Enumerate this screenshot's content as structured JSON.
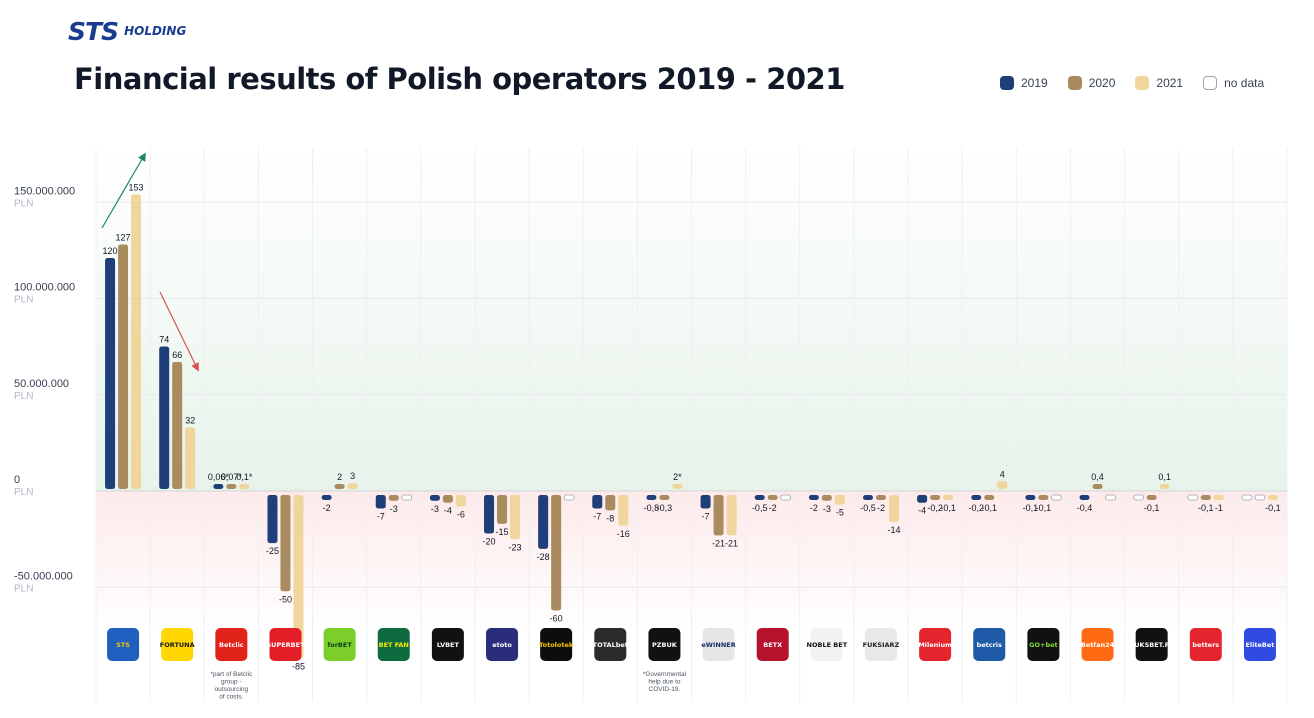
{
  "brand": {
    "mark": "STS",
    "sub": "HOLDING"
  },
  "colors": {
    "y2019": "#1f3f7a",
    "y2020": "#a98b5f",
    "y2021": "#f0d59c",
    "nodata": "#ffffff",
    "up_arrow": "#1e8a5a",
    "down_arrow": "#d9534f"
  },
  "chart_data": {
    "type": "bar",
    "title": "Financial results of Polish operators 2019 - 2021",
    "ylim": [
      -82000000,
      163000000
    ],
    "yticks": [
      {
        "value": 150000000,
        "label": "150.000.000",
        "unit": "PLN"
      },
      {
        "value": 100000000,
        "label": "100.000.000",
        "unit": "PLN"
      },
      {
        "value": 50000000,
        "label": "50.000.000",
        "unit": "PLN"
      },
      {
        "value": 0,
        "label": "0",
        "unit": "PLN"
      },
      {
        "value": -50000000,
        "label": "-50.000.000",
        "unit": "PLN"
      }
    ],
    "series": [
      {
        "name": "2019"
      },
      {
        "name": "2020"
      },
      {
        "name": "2021"
      }
    ],
    "nodata_label": "no data",
    "categories": [
      {
        "name": "STS",
        "logo": {
          "text": "STS",
          "bg": "#1f5fbf",
          "fg": "#f7c600"
        },
        "values": [
          120,
          127,
          153
        ],
        "labels": [
          "120",
          "127",
          "153"
        ]
      },
      {
        "name": "FORTUNA",
        "logo": {
          "text": "FORTUNA",
          "bg": "#ffd600",
          "fg": "#1a1a1a"
        },
        "values": [
          74,
          66,
          32
        ],
        "labels": [
          "74",
          "66",
          "32"
        ]
      },
      {
        "name": "Betclic",
        "logo": {
          "text": "Betclic",
          "bg": "#e2231a",
          "fg": "#ffffff"
        },
        "values": [
          0.06,
          0.07,
          0.1
        ],
        "labels": [
          "0,06*",
          "0,07*",
          "0,1*"
        ],
        "footnote": [
          "*part of Betclic",
          "group -",
          "outsourcing",
          "of costs."
        ]
      },
      {
        "name": "SUPERBET",
        "logo": {
          "text": "SUPERBET",
          "bg": "#e41e26",
          "fg": "#ffffff"
        },
        "values": [
          -25,
          -50,
          -85
        ],
        "labels": [
          "-25",
          "-50",
          "-85"
        ]
      },
      {
        "name": "forBET",
        "logo": {
          "text": "forBET",
          "bg": "#7ccf2a",
          "fg": "#0b3d1a"
        },
        "values": [
          -2,
          2,
          3
        ],
        "labels": [
          "-2",
          "2",
          "3"
        ]
      },
      {
        "name": "BETFAN",
        "logo": {
          "text": "BET FAN",
          "bg": "#0e6b3f",
          "fg": "#ffe600"
        },
        "values": [
          -7,
          -3,
          null
        ],
        "labels": [
          "-7",
          "-3",
          ""
        ]
      },
      {
        "name": "LVBET",
        "logo": {
          "text": "LVBET",
          "bg": "#111111",
          "fg": "#ffffff"
        },
        "values": [
          -3,
          -4,
          -6
        ],
        "labels": [
          "-3",
          "-4",
          "-6"
        ]
      },
      {
        "name": "eToto",
        "logo": {
          "text": "etoto",
          "bg": "#2a2e7a",
          "fg": "#ffffff"
        },
        "values": [
          -20,
          -15,
          -23
        ],
        "labels": [
          "-20",
          "-15",
          "-23"
        ]
      },
      {
        "name": "Totolotek",
        "logo": {
          "text": "Totolotek",
          "bg": "#0d0d0d",
          "fg": "#f5c400"
        },
        "values": [
          -28,
          -60,
          null
        ],
        "labels": [
          "-28",
          "-60",
          ""
        ]
      },
      {
        "name": "TOTALbet",
        "logo": {
          "text": "TOTALbet",
          "bg": "#2b2b2b",
          "fg": "#ffffff"
        },
        "values": [
          -7,
          -8,
          -16
        ],
        "labels": [
          "-7",
          "-8",
          "-16"
        ]
      },
      {
        "name": "PZBUK",
        "logo": {
          "text": "PZBUK",
          "bg": "#111111",
          "fg": "#ffffff"
        },
        "values": [
          -0.8,
          -0.3,
          2
        ],
        "labels": [
          "-0,8",
          "-0,3",
          "2*"
        ],
        "footnote": [
          "*Governmental",
          "help due to",
          "COVID-19."
        ]
      },
      {
        "name": "eWinner",
        "logo": {
          "text": "eWINNER",
          "bg": "#e6e6e6",
          "fg": "#1a2c6b"
        },
        "values": [
          -7,
          -21,
          -21
        ],
        "labels": [
          "-7",
          "-21",
          "-21"
        ]
      },
      {
        "name": "BETX",
        "logo": {
          "text": "BETX",
          "bg": "#b5122e",
          "fg": "#ffffff"
        },
        "values": [
          -0.5,
          -2,
          null
        ],
        "labels": [
          "-0,5",
          "-2",
          ""
        ]
      },
      {
        "name": "NOBLE BET",
        "logo": {
          "text": "NOBLE BET",
          "bg": "#f2f2f2",
          "fg": "#111111"
        },
        "values": [
          -2,
          -3,
          -5
        ],
        "labels": [
          "-2",
          "-3",
          "-5"
        ]
      },
      {
        "name": "Fuksiarz",
        "logo": {
          "text": "FUKSIARZ",
          "bg": "#e8e8e8",
          "fg": "#222222"
        },
        "values": [
          -0.5,
          -2,
          -14
        ],
        "labels": [
          "-0,5",
          "-2",
          "-14"
        ]
      },
      {
        "name": "Milenium",
        "logo": {
          "text": "Milenium",
          "bg": "#e3262e",
          "fg": "#ffffff"
        },
        "values": [
          -4,
          -0.2,
          -0.1
        ],
        "labels": [
          "-4",
          "-0,2",
          "-0,1"
        ]
      },
      {
        "name": "betcris",
        "logo": {
          "text": "betcris",
          "bg": "#1e5aa8",
          "fg": "#ffffff"
        },
        "values": [
          -0.2,
          -0.1,
          4
        ],
        "labels": [
          "-0,2",
          "-0,1",
          "4"
        ]
      },
      {
        "name": "GO+bet",
        "logo": {
          "text": "GO+bet",
          "bg": "#111111",
          "fg": "#7bdc3a"
        },
        "values": [
          -0.1,
          -0.1,
          null
        ],
        "labels": [
          "-0,1",
          "-0,1",
          ""
        ]
      },
      {
        "name": "Betfan24",
        "logo": {
          "text": "Betfan24",
          "bg": "#ff6a13",
          "fg": "#ffffff"
        },
        "values": [
          -0.4,
          0.4,
          null
        ],
        "labels": [
          "-0,4",
          "0,4",
          ""
        ]
      },
      {
        "name": "FUKSBET.PL",
        "logo": {
          "text": "FUKSBET.PL",
          "bg": "#111111",
          "fg": "#ffffff"
        },
        "values": [
          null,
          -0.1,
          0.1
        ],
        "labels": [
          "",
          "-0,1",
          "0,1"
        ]
      },
      {
        "name": "betters",
        "logo": {
          "text": "betters",
          "bg": "#e3262e",
          "fg": "#ffffff"
        },
        "values": [
          null,
          -0.1,
          -1
        ],
        "labels": [
          "",
          "-0,1",
          "-1"
        ]
      },
      {
        "name": "EliteBet",
        "logo": {
          "text": "EliteBet",
          "bg": "#2f4be0",
          "fg": "#ffffff"
        },
        "values": [
          null,
          null,
          -0.1
        ],
        "labels": [
          "",
          "",
          "-0,1"
        ]
      }
    ]
  }
}
